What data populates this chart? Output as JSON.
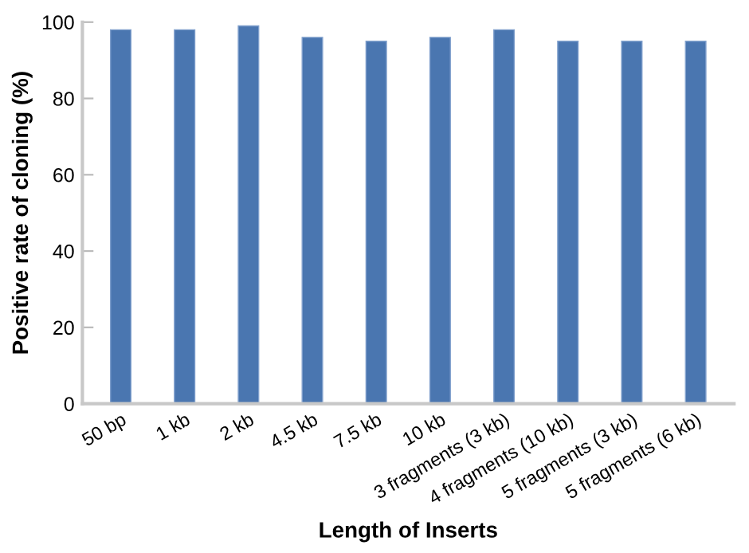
{
  "chart_data": {
    "type": "bar",
    "xlabel": "Length of Inserts",
    "ylabel": "Positive rate of cloning (%)",
    "categories": [
      "50 bp",
      "1 kb",
      "2 kb",
      "4.5 kb",
      "7.5 kb",
      "10 kb",
      "3 fragments (3 kb)",
      "4 fragments (10 kb)",
      "5 fragments (3 kb)",
      "5 fragments (6 kb)"
    ],
    "values": [
      98,
      98,
      99,
      96,
      95,
      96,
      98,
      95,
      95,
      95
    ],
    "color": "#4a76b0",
    "ylim": [
      0,
      100
    ],
    "yticks": [
      0,
      20,
      40,
      60,
      80,
      100
    ],
    "grid": false,
    "legend": false
  }
}
